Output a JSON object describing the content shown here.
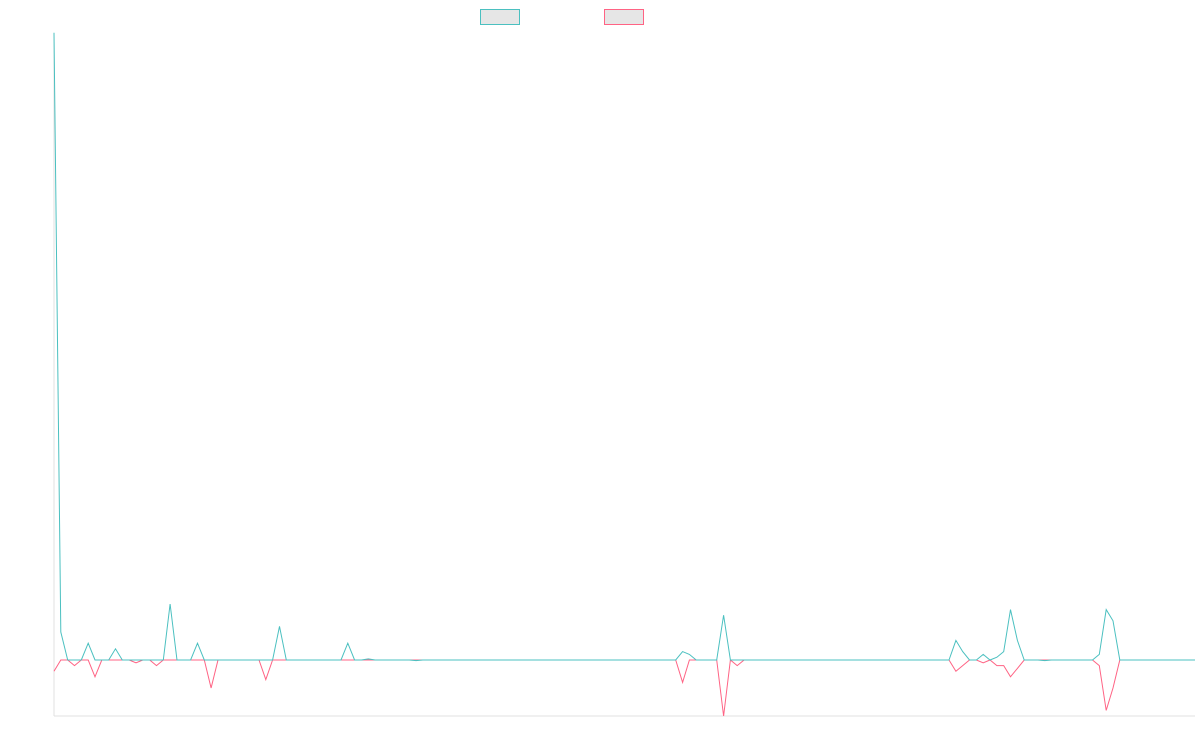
{
  "chart_data": {
    "type": "line",
    "title": "",
    "xlabel": "",
    "ylabel": "",
    "x_count": 168,
    "ylim": [
      -1,
      11
    ],
    "grid": false,
    "legend_position": "top-center",
    "series": [
      {
        "color": "#4bc0c0",
        "legend_fill": "#e6e6e6",
        "values": [
          11.2,
          0.5,
          0.0,
          0.0,
          0.0,
          0.3,
          0.0,
          0.0,
          0.0,
          0.2,
          0.0,
          0.0,
          0.0,
          0.0,
          0.0,
          0.0,
          0.0,
          1.0,
          0.0,
          0.0,
          0.0,
          0.3,
          0.0,
          0.0,
          0.0,
          0.0,
          0.0,
          0.0,
          0.0,
          0.0,
          0.0,
          0.0,
          0.0,
          0.6,
          0.0,
          0.0,
          0.0,
          0.0,
          0.0,
          0.0,
          0.0,
          0.0,
          0.0,
          0.3,
          0.0,
          0.0,
          0.02,
          0.0,
          0.0,
          0.0,
          0.0,
          0.0,
          0.0,
          -0.01,
          0.0,
          0.0,
          0.0,
          0.0,
          0.0,
          0.0,
          0.0,
          0.0,
          0.0,
          0.0,
          0.0,
          0.0,
          0.0,
          0.0,
          0.0,
          0.0,
          0.0,
          0.0,
          0.0,
          0.0,
          0.0,
          0.0,
          0.0,
          0.0,
          0.0,
          0.0,
          0.0,
          0.0,
          0.0,
          0.0,
          0.0,
          0.0,
          0.0,
          0.0,
          0.0,
          0.0,
          0.0,
          0.0,
          0.15,
          0.1,
          0.0,
          0.0,
          0.0,
          0.0,
          0.8,
          0.0,
          0.0,
          0.0,
          0.0,
          0.0,
          0.0,
          0.0,
          0.0,
          0.0,
          0.0,
          0.0,
          0.0,
          0.0,
          0.0,
          0.0,
          0.0,
          0.0,
          0.0,
          0.0,
          0.0,
          0.0,
          0.0,
          0.0,
          0.0,
          0.0,
          0.0,
          0.0,
          0.0,
          0.0,
          0.0,
          0.0,
          0.0,
          0.0,
          0.35,
          0.15,
          0.0,
          0.0,
          0.1,
          0.0,
          0.05,
          0.15,
          0.9,
          0.35,
          0.0,
          0.0,
          0.0,
          -0.01,
          0.0,
          0.0,
          0.0,
          0.0,
          0.0,
          0.0,
          0.0,
          0.1,
          0.9,
          0.7,
          0.0,
          0.0,
          0.0,
          0.0,
          0.0,
          0.0,
          0.0,
          0.0,
          0.0,
          0.0,
          0.0,
          0.0
        ]
      },
      {
        "color": "#ff6384",
        "legend_fill": "#e6e6e6",
        "values": [
          -0.2,
          0.0,
          0.0,
          -0.1,
          0.0,
          0.0,
          -0.3,
          0.0,
          0.0,
          0.0,
          0.0,
          0.0,
          -0.05,
          0.0,
          0.0,
          -0.1,
          0.0,
          0.0,
          0.0,
          0.0,
          0.0,
          0.0,
          0.0,
          -0.5,
          0.0,
          0.0,
          0.0,
          0.0,
          0.0,
          0.0,
          0.0,
          -0.35,
          0.0,
          0.0,
          0.0,
          0.0,
          0.0,
          0.0,
          0.0,
          0.0,
          0.0,
          0.0,
          0.0,
          0.0,
          0.0,
          0.0,
          0.0,
          0.0,
          0.0,
          0.0,
          0.0,
          0.0,
          0.0,
          0.0,
          0.0,
          0.0,
          0.0,
          0.0,
          0.0,
          0.0,
          0.0,
          0.0,
          0.0,
          0.0,
          0.0,
          0.0,
          0.0,
          0.0,
          0.0,
          0.0,
          0.0,
          0.0,
          0.0,
          0.0,
          0.0,
          0.0,
          0.0,
          0.0,
          0.0,
          0.0,
          0.0,
          0.0,
          0.0,
          0.0,
          0.0,
          0.0,
          0.0,
          0.0,
          0.0,
          0.0,
          0.0,
          0.0,
          -0.4,
          0.0,
          0.0,
          0.0,
          0.0,
          0.0,
          -1.0,
          0.0,
          -0.1,
          0.0,
          0.0,
          0.0,
          0.0,
          0.0,
          0.0,
          0.0,
          0.0,
          0.0,
          0.0,
          0.0,
          0.0,
          0.0,
          0.0,
          0.0,
          0.0,
          0.0,
          0.0,
          0.0,
          0.0,
          0.0,
          0.0,
          0.0,
          0.0,
          0.0,
          0.0,
          0.0,
          0.0,
          0.0,
          0.0,
          0.0,
          -0.2,
          -0.1,
          0.0,
          0.0,
          -0.05,
          0.0,
          -0.1,
          -0.1,
          -0.3,
          -0.15,
          0.0,
          0.0,
          0.0,
          0.0,
          0.0,
          0.0,
          0.0,
          0.0,
          0.0,
          0.0,
          0.0,
          -0.1,
          -0.9,
          -0.5,
          0.0,
          0.0,
          0.0,
          0.0,
          0.0,
          0.0,
          0.0,
          0.0,
          0.0,
          0.0,
          0.0,
          0.0
        ]
      }
    ]
  },
  "legend": {
    "items": [
      {
        "label": "",
        "color": "#4bc0c0",
        "fill": "#e6e6e6"
      },
      {
        "label": "",
        "color": "#ff6384",
        "fill": "#e6e6e6"
      }
    ]
  }
}
